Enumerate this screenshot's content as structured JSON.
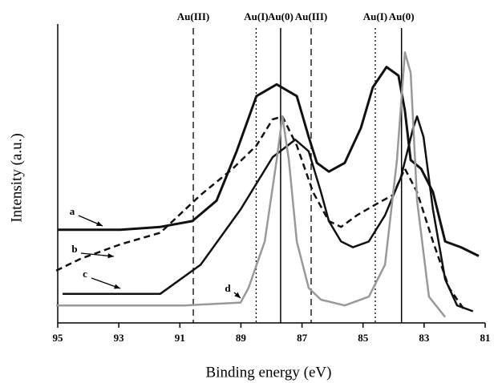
{
  "chart_data": {
    "type": "line",
    "xlabel": "Binding energy (eV)",
    "ylabel": "Intensity (a.u.)",
    "xlim": [
      95,
      81
    ],
    "ylim": [
      0,
      100
    ],
    "xticks": [
      95,
      93,
      91,
      89,
      87,
      85,
      83,
      81
    ],
    "reference_lines": [
      {
        "label": "Au(III)",
        "x": 90.56,
        "style": "dashed"
      },
      {
        "label": "Au(I)",
        "x": 88.5,
        "style": "dotted"
      },
      {
        "label": "Au(0)",
        "x": 87.7,
        "style": "solid"
      },
      {
        "label": "Au(III)",
        "x": 86.7,
        "style": "dashed"
      },
      {
        "label": "Au(I)",
        "x": 84.6,
        "style": "dotted"
      },
      {
        "label": "Au(0)",
        "x": 83.74,
        "style": "solid"
      }
    ],
    "series": [
      {
        "name": "a",
        "color": "#111111",
        "style": "solid",
        "width": 3,
        "x": [
          95.0,
          92.95,
          91.64,
          90.59,
          89.8,
          89.14,
          88.49,
          87.83,
          87.17,
          86.78,
          86.51,
          86.12,
          85.6,
          85.07,
          84.68,
          84.23,
          83.84,
          83.63,
          83.44,
          83.1,
          82.71,
          82.31,
          81.79,
          81.21
        ],
        "values": [
          32,
          32,
          33,
          35,
          42,
          59,
          78,
          82,
          78,
          64,
          55,
          52,
          55,
          67,
          81,
          88,
          85,
          73,
          56,
          53,
          45,
          28,
          26,
          23
        ]
      },
      {
        "name": "b",
        "color": "#111111",
        "style": "dashed",
        "width": 2.5,
        "x": [
          95.05,
          94.26,
          92.95,
          91.64,
          90.32,
          89.27,
          88.49,
          87.96,
          87.64,
          87.17,
          86.64,
          86.12,
          85.72,
          85.2,
          84.54,
          84.02,
          83.63,
          83.23,
          82.71,
          82.18,
          81.65
        ],
        "values": [
          18,
          22,
          27,
          31,
          44,
          53,
          61,
          70,
          71,
          61,
          45,
          35,
          33,
          37,
          41,
          44,
          53,
          45,
          28,
          12,
          4
        ]
      },
      {
        "name": "c",
        "color": "#111111",
        "style": "solid",
        "width": 2.5,
        "x": [
          94.84,
          92.95,
          91.64,
          90.32,
          89.01,
          87.96,
          87.22,
          86.78,
          86.38,
          86.12,
          85.72,
          85.33,
          84.81,
          84.28,
          83.76,
          83.36,
          83.23,
          83.02,
          82.71,
          82.31,
          81.92,
          81.4
        ],
        "values": [
          10,
          10,
          10,
          20,
          39,
          57,
          63,
          59,
          45,
          35,
          28,
          26,
          28,
          37,
          50,
          67,
          71,
          64,
          39,
          15,
          6,
          4
        ]
      },
      {
        "name": "d",
        "color": "#999999",
        "style": "solid",
        "width": 2.5,
        "x": [
          95.05,
          92.95,
          90.85,
          89.01,
          88.75,
          88.22,
          87.83,
          87.64,
          87.43,
          87.17,
          86.78,
          86.38,
          85.6,
          84.81,
          84.28,
          83.89,
          83.63,
          83.44,
          83.23,
          82.84,
          82.31
        ],
        "values": [
          6,
          6,
          6,
          7,
          12,
          28,
          56,
          71,
          56,
          28,
          12,
          8,
          6,
          9,
          20,
          56,
          93,
          86,
          42,
          9,
          2
        ]
      }
    ]
  }
}
